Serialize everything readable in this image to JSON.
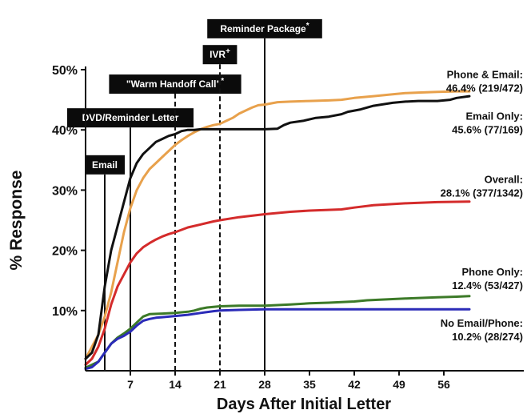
{
  "chart_data": {
    "type": "line",
    "xlabel": "Days After Initial Letter",
    "ylabel": "% Response",
    "xlim": [
      0,
      60
    ],
    "ylim": [
      0,
      50
    ],
    "x_ticks": [
      7,
      14,
      21,
      28,
      35,
      42,
      49,
      56
    ],
    "y_ticks": [
      10,
      20,
      30,
      40,
      50
    ],
    "y_tick_suffix": "%",
    "series": [
      {
        "key": "phone_email",
        "color": "#e8a14c",
        "x": [
          0,
          1,
          2,
          3,
          4,
          5,
          6,
          7,
          8,
          9,
          10,
          11,
          12,
          13,
          14,
          15,
          16,
          17,
          18,
          19,
          20,
          21,
          22,
          23,
          24,
          25,
          26,
          27,
          28,
          30,
          32,
          35,
          38,
          40,
          42,
          45,
          48,
          50,
          52,
          55,
          58,
          60
        ],
        "y": [
          2,
          4,
          6,
          9,
          13,
          18,
          23,
          27,
          30,
          32,
          33.5,
          34.5,
          35.5,
          36.5,
          37.5,
          38.3,
          39,
          39.6,
          40.1,
          40.5,
          40.8,
          41,
          41.5,
          42,
          42.7,
          43.2,
          43.7,
          44.1,
          44.2,
          44.6,
          44.7,
          44.8,
          44.9,
          45,
          45.3,
          45.6,
          45.9,
          46.1,
          46.2,
          46.3,
          46.4,
          46.4
        ]
      },
      {
        "key": "email_only",
        "color": "#111111",
        "x": [
          0,
          1,
          2,
          3,
          4,
          5,
          6,
          7,
          8,
          9,
          10,
          11,
          12,
          13,
          14,
          15,
          16,
          17,
          18,
          20,
          22,
          25,
          28,
          30,
          31,
          32,
          34,
          36,
          38,
          40,
          41,
          42,
          43,
          45,
          48,
          50,
          52,
          55,
          56,
          57,
          58,
          60
        ],
        "y": [
          2,
          3,
          6,
          14,
          20,
          24,
          28,
          32,
          34.5,
          36,
          37,
          38,
          38.5,
          39,
          39.3,
          39.8,
          40,
          40,
          40.1,
          40.1,
          40.1,
          40.1,
          40.1,
          40.2,
          40.8,
          41.2,
          41.5,
          42,
          42.2,
          42.6,
          43,
          43.2,
          43.4,
          44,
          44.5,
          44.7,
          44.8,
          44.8,
          44.9,
          45,
          45.3,
          45.6
        ]
      },
      {
        "key": "overall",
        "color": "#d42b2b",
        "x": [
          0,
          1,
          2,
          3,
          4,
          5,
          6,
          7,
          8,
          9,
          10,
          11,
          12,
          13,
          14,
          16,
          18,
          20,
          21,
          24,
          28,
          32,
          35,
          40,
          42,
          45,
          50,
          55,
          60
        ],
        "y": [
          1,
          2,
          4,
          7,
          11,
          14,
          16,
          18,
          19.5,
          20.5,
          21.2,
          21.8,
          22.3,
          22.7,
          23,
          23.8,
          24.3,
          24.8,
          25,
          25.5,
          26,
          26.4,
          26.6,
          26.8,
          27.1,
          27.5,
          27.8,
          28,
          28.1
        ]
      },
      {
        "key": "phone_only",
        "color": "#3c7a28",
        "x": [
          0,
          2,
          3,
          4,
          5,
          6,
          7,
          8,
          9,
          10,
          12,
          14,
          16,
          17,
          18,
          19,
          20,
          21,
          24,
          28,
          30,
          32,
          35,
          38,
          40,
          42,
          44,
          46,
          48,
          50,
          55,
          58,
          60
        ],
        "y": [
          0.5,
          1.5,
          3,
          4.5,
          5.5,
          6.2,
          7,
          8,
          9,
          9.4,
          9.5,
          9.6,
          9.8,
          10,
          10.3,
          10.5,
          10.6,
          10.7,
          10.8,
          10.8,
          10.9,
          11,
          11.2,
          11.3,
          11.4,
          11.5,
          11.7,
          11.8,
          11.9,
          12,
          12.2,
          12.3,
          12.4
        ]
      },
      {
        "key": "no_email_phone",
        "color": "#2b2bb8",
        "x": [
          0,
          1,
          2,
          3,
          4,
          5,
          6,
          7,
          8,
          9,
          10,
          11,
          12,
          14,
          16,
          18,
          20,
          21,
          24,
          28,
          35,
          40,
          45,
          50,
          55,
          60
        ],
        "y": [
          0.3,
          0.6,
          1.5,
          3,
          4.5,
          5.3,
          5.8,
          6.5,
          7.5,
          8.3,
          8.6,
          8.8,
          8.9,
          9.1,
          9.3,
          9.6,
          9.9,
          10,
          10.1,
          10.2,
          10.2,
          10.2,
          10.2,
          10.2,
          10.2,
          10.2
        ]
      }
    ],
    "series_labels": [
      {
        "key": "phone_email",
        "line1": "Phone & Email:",
        "line2": "46.4% (219/472)",
        "anchor_y": 48.6
      },
      {
        "key": "email_only",
        "line1": "Email  Only:",
        "line2": "45.6% (77/169)",
        "anchor_y": 41.7
      },
      {
        "key": "overall",
        "line1": "Overall:",
        "line2": "28.1% (377/1342)",
        "anchor_y": 31.2
      },
      {
        "key": "phone_only",
        "line1": "Phone  Only:",
        "line2": "12.4% (53/427)",
        "anchor_y": 15.8
      },
      {
        "key": "no_email_phone",
        "line1": "No Email/Phone:",
        "line2": "10.2% (28/274)",
        "anchor_y": 7.3
      }
    ],
    "annotations": [
      {
        "key": "email",
        "day": 3,
        "label": "Email",
        "style": "solid",
        "label_y": 34.2
      },
      {
        "key": "dvd",
        "day": 7,
        "label": "DVD/Reminder  Letter",
        "style": "solid",
        "label_y": 42.0
      },
      {
        "key": "warm",
        "day": 14,
        "label": "\"Warm  Handoff Call\"",
        "sup": "*",
        "style": "dashed",
        "label_y": 47.6
      },
      {
        "key": "ivr",
        "day": 21,
        "label": "IVR",
        "sup": "+",
        "style": "dashed",
        "label_y": 52.5
      },
      {
        "key": "reminder_pkg",
        "day": 28,
        "label": "Reminder  Package",
        "sup": "*",
        "style": "solid",
        "label_y": 56.8
      }
    ]
  }
}
